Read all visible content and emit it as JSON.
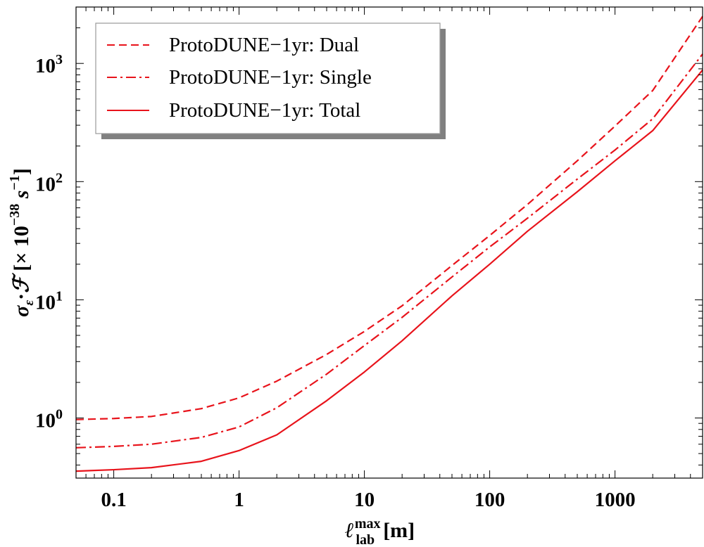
{
  "chart_data": {
    "type": "line",
    "title": "",
    "xlabel": "ℓ_lab^max [m]",
    "ylabel": "σ_ε·ℱ [× 10^−38 s^−1]",
    "xscale": "log",
    "yscale": "log",
    "xlim": [
      0.05,
      5000
    ],
    "ylim": [
      0.31,
      3000
    ],
    "x_ticks": [
      {
        "value": 0.1,
        "label": "0.1"
      },
      {
        "value": 1,
        "label": "1"
      },
      {
        "value": 10,
        "label": "10"
      },
      {
        "value": 100,
        "label": "100"
      },
      {
        "value": 1000,
        "label": "1000"
      }
    ],
    "y_ticks": [
      {
        "value": 1,
        "base": "10",
        "exp": "0"
      },
      {
        "value": 10,
        "base": "10",
        "exp": "1"
      },
      {
        "value": 100,
        "base": "10",
        "exp": "2"
      },
      {
        "value": 1000,
        "base": "10",
        "exp": "3"
      }
    ],
    "legend_position": "top-left",
    "series": [
      {
        "name": "ProtoDUNE−1yr: Dual",
        "style": "dashed",
        "color": "#e8131b",
        "x": [
          0.05,
          0.1,
          0.2,
          0.5,
          1,
          2,
          5,
          10,
          20,
          50,
          100,
          200,
          500,
          1000,
          2000,
          5000
        ],
        "y": [
          0.97,
          0.99,
          1.03,
          1.2,
          1.48,
          2.05,
          3.45,
          5.4,
          8.9,
          19.5,
          35,
          64,
          150,
          295,
          590,
          2500
        ]
      },
      {
        "name": "ProtoDUNE−1yr: Single",
        "style": "dashdot",
        "color": "#e8131b",
        "x": [
          0.05,
          0.1,
          0.2,
          0.5,
          1,
          2,
          5,
          10,
          20,
          50,
          100,
          200,
          500,
          1000,
          2000,
          5000
        ],
        "y": [
          0.56,
          0.575,
          0.6,
          0.685,
          0.84,
          1.22,
          2.35,
          4.1,
          7.1,
          15.6,
          28,
          49,
          105,
          185,
          340,
          1200
        ]
      },
      {
        "name": "ProtoDUNE−1yr: Total",
        "style": "solid",
        "color": "#e8131b",
        "x": [
          0.05,
          0.1,
          0.2,
          0.5,
          1,
          2,
          5,
          10,
          20,
          50,
          100,
          200,
          500,
          1000,
          2000,
          5000
        ],
        "y": [
          0.355,
          0.365,
          0.38,
          0.43,
          0.53,
          0.72,
          1.4,
          2.45,
          4.5,
          10.8,
          20,
          38,
          82,
          150,
          270,
          880
        ]
      }
    ]
  }
}
